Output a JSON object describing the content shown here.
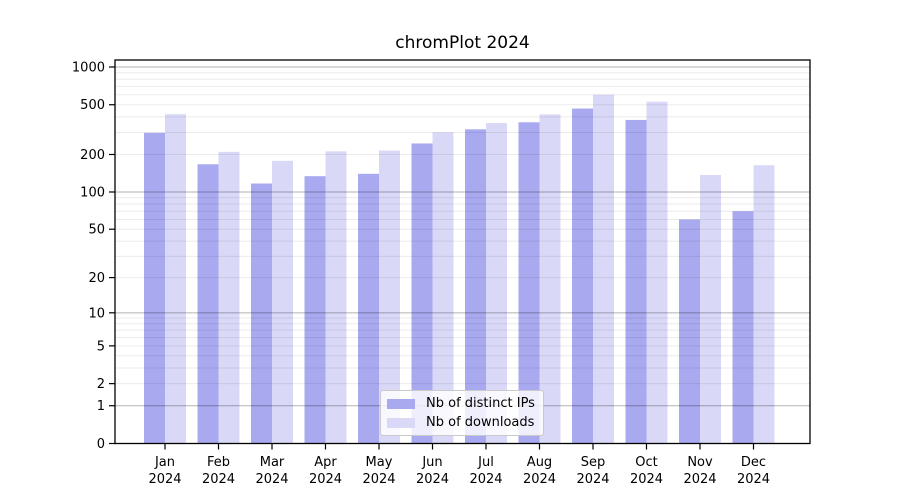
{
  "chart_data": {
    "type": "bar",
    "title": "chromPlot 2024",
    "categories": [
      "Jan",
      "Feb",
      "Mar",
      "Apr",
      "May",
      "Jun",
      "Jul",
      "Aug",
      "Sep",
      "Oct",
      "Nov",
      "Dec"
    ],
    "category_year": "2024",
    "series": [
      {
        "name": "Nb of distinct IPs",
        "color": "#a9a9f0",
        "values": [
          298,
          167,
          117,
          134,
          140,
          245,
          318,
          362,
          466,
          378,
          60,
          70
        ]
      },
      {
        "name": "Nb of downloads",
        "color": "#d9d9f7",
        "values": [
          420,
          210,
          178,
          212,
          215,
          301,
          357,
          419,
          601,
          529,
          137,
          164
        ]
      }
    ],
    "yaxis": {
      "scale": "log10(value+1)",
      "tick_labels": [
        1000,
        500,
        200,
        100,
        50,
        20,
        10,
        5,
        2,
        1,
        0
      ],
      "top_value": 1000
    },
    "grid": {
      "major_at": [
        1,
        10,
        100,
        1000
      ],
      "minor_per_decade": [
        2,
        3,
        4,
        5,
        6,
        7,
        8,
        9
      ]
    },
    "legend_position": "bottom-center",
    "colors": {
      "major_grid": "rgba(0,0,0,0.30)",
      "minor_grid": "rgba(0,0,0,0.08)",
      "axis": "#000000",
      "background": "#ffffff"
    }
  }
}
